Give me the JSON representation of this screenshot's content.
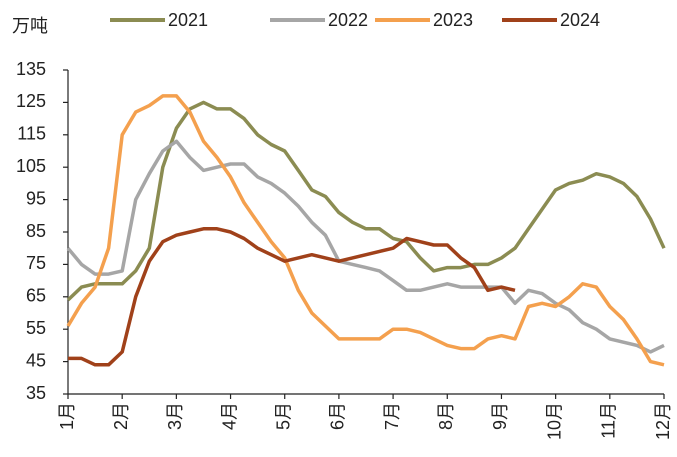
{
  "chart_data": {
    "type": "line",
    "y_unit": "万吨",
    "legend": "top",
    "x": [
      1,
      1.25,
      1.5,
      1.75,
      2,
      2.25,
      2.5,
      2.75,
      3,
      3.25,
      3.5,
      3.75,
      4,
      4.25,
      4.5,
      4.75,
      5,
      5.25,
      5.5,
      5.75,
      6,
      6.25,
      6.5,
      6.75,
      7,
      7.25,
      7.5,
      7.75,
      8,
      8.25,
      8.5,
      8.75,
      9,
      9.25,
      9.5,
      9.75,
      10,
      10.25,
      10.5,
      10.75,
      11,
      11.25,
      11.5,
      11.75,
      12
    ],
    "xlim": [
      1,
      12
    ],
    "xticks": [
      {
        "value": 1,
        "label": "1月"
      },
      {
        "value": 2,
        "label": "2月"
      },
      {
        "value": 3,
        "label": "3月"
      },
      {
        "value": 4,
        "label": "4月"
      },
      {
        "value": 5,
        "label": "5月"
      },
      {
        "value": 6,
        "label": "6月"
      },
      {
        "value": 7,
        "label": "7月"
      },
      {
        "value": 8,
        "label": "8月"
      },
      {
        "value": 9,
        "label": "9月"
      },
      {
        "value": 10,
        "label": "10月"
      },
      {
        "value": 11,
        "label": "11月"
      },
      {
        "value": 12,
        "label": "12月"
      }
    ],
    "ylim": [
      35,
      135
    ],
    "yticks": [
      35,
      45,
      55,
      65,
      75,
      85,
      95,
      105,
      115,
      125,
      135
    ],
    "series": [
      {
        "name": "2021",
        "color": "#8b8c52",
        "values": [
          64,
          68,
          69,
          69,
          69,
          73,
          80,
          105,
          117,
          123,
          125,
          123,
          123,
          120,
          115,
          112,
          110,
          104,
          98,
          96,
          91,
          88,
          86,
          86,
          83,
          82,
          77,
          73,
          74,
          74,
          75,
          75,
          77,
          80,
          86,
          92,
          98,
          100,
          101,
          103,
          102,
          100,
          96,
          89,
          80
        ]
      },
      {
        "name": "2022",
        "color": "#a6a6a6",
        "values": [
          80,
          75,
          72,
          72,
          73,
          95,
          103,
          110,
          113,
          108,
          104,
          105,
          106,
          106,
          102,
          100,
          97,
          93,
          88,
          84,
          76,
          75,
          74,
          73,
          70,
          67,
          67,
          68,
          69,
          68,
          68,
          68,
          68,
          63,
          67,
          66,
          63,
          61,
          57,
          55,
          52,
          51,
          50,
          48,
          50
        ]
      },
      {
        "name": "2023",
        "color": "#f4a04e",
        "values": [
          56,
          63,
          68,
          80,
          115,
          122,
          124,
          127,
          127,
          122,
          113,
          108,
          102,
          94,
          88,
          82,
          77,
          67,
          60,
          56,
          52,
          52,
          52,
          52,
          55,
          55,
          54,
          52,
          50,
          49,
          49,
          52,
          53,
          52,
          62,
          63,
          62,
          65,
          69,
          68,
          62,
          58,
          52,
          45,
          44
        ]
      },
      {
        "name": "2024",
        "color": "#a0411a",
        "values": [
          46,
          46,
          44,
          44,
          48,
          65,
          76,
          82,
          84,
          85,
          86,
          86,
          85,
          83,
          80,
          78,
          76,
          77,
          78,
          77,
          76,
          77,
          78,
          79,
          80,
          83,
          82,
          81,
          81,
          77,
          74,
          67,
          68,
          67,
          null,
          null,
          null,
          null,
          null,
          null,
          null,
          null,
          null,
          null,
          null
        ]
      }
    ]
  }
}
